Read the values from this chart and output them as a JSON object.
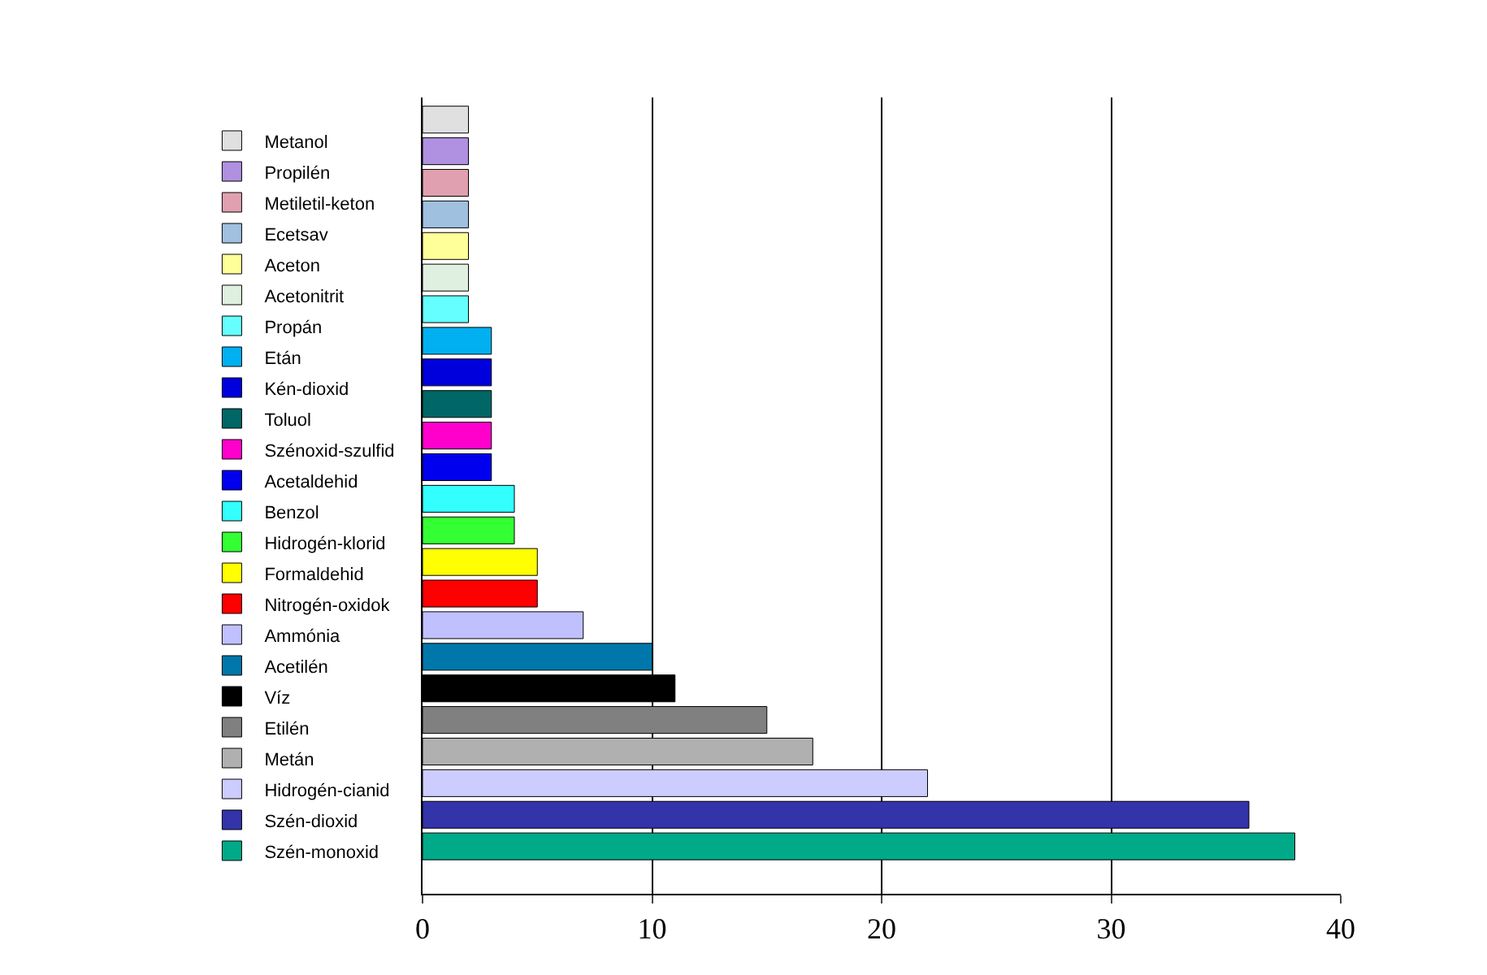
{
  "chart_data": {
    "type": "bar",
    "orientation": "horizontal",
    "categories": [
      null,
      null,
      null,
      null,
      null,
      null,
      null,
      null,
      null,
      null,
      null,
      null,
      null,
      null,
      null,
      null,
      null,
      null,
      null,
      null,
      null,
      null,
      null,
      null,
      null
    ],
    "xlim": [
      0,
      40
    ],
    "xticks": [
      0,
      10,
      20,
      30,
      40
    ],
    "grid": "x",
    "legend": "left",
    "tick_labels": "x",
    "series": [
      {
        "name": "Metanol",
        "color": "#e0e0e0",
        "values": [
          2,
          null,
          null,
          null,
          null,
          null,
          null,
          null,
          null,
          null,
          null,
          null,
          null,
          null,
          null,
          null,
          null,
          null,
          null,
          null,
          null,
          null,
          null,
          null,
          null
        ]
      },
      {
        "name": "Propilén",
        "color": "#b090e0",
        "values": [
          null,
          2,
          null,
          null,
          null,
          null,
          null,
          null,
          null,
          null,
          null,
          null,
          null,
          null,
          null,
          null,
          null,
          null,
          null,
          null,
          null,
          null,
          null,
          null,
          null
        ]
      },
      {
        "name": "Metiletil-keton",
        "color": "#e0a0b0",
        "values": [
          null,
          null,
          2,
          null,
          null,
          null,
          null,
          null,
          null,
          null,
          null,
          null,
          null,
          null,
          null,
          null,
          null,
          null,
          null,
          null,
          null,
          null,
          null,
          null,
          null
        ]
      },
      {
        "name": "Ecetsav",
        "color": "#a0c0e0",
        "values": [
          null,
          null,
          null,
          2,
          null,
          null,
          null,
          null,
          null,
          null,
          null,
          null,
          null,
          null,
          null,
          null,
          null,
          null,
          null,
          null,
          null,
          null,
          null,
          null,
          null
        ]
      },
      {
        "name": "Aceton",
        "color": "#ffff99",
        "values": [
          null,
          null,
          null,
          null,
          2,
          null,
          null,
          null,
          null,
          null,
          null,
          null,
          null,
          null,
          null,
          null,
          null,
          null,
          null,
          null,
          null,
          null,
          null,
          null,
          null
        ]
      },
      {
        "name": "Acetonitrit",
        "color": "#e0f0e0",
        "values": [
          null,
          null,
          null,
          null,
          null,
          2,
          null,
          null,
          null,
          null,
          null,
          null,
          null,
          null,
          null,
          null,
          null,
          null,
          null,
          null,
          null,
          null,
          null,
          null,
          null
        ]
      },
      {
        "name": "Propán",
        "color": "#66ffff",
        "values": [
          null,
          null,
          null,
          null,
          null,
          null,
          2,
          null,
          null,
          null,
          null,
          null,
          null,
          null,
          null,
          null,
          null,
          null,
          null,
          null,
          null,
          null,
          null,
          null,
          null
        ]
      },
      {
        "name": "Etán",
        "color": "#00b0f0",
        "values": [
          null,
          null,
          null,
          null,
          null,
          null,
          null,
          3,
          null,
          null,
          null,
          null,
          null,
          null,
          null,
          null,
          null,
          null,
          null,
          null,
          null,
          null,
          null,
          null,
          null
        ]
      },
      {
        "name": "Kén-dioxid",
        "color": "#0000dd",
        "values": [
          null,
          null,
          null,
          null,
          null,
          null,
          null,
          null,
          3,
          null,
          null,
          null,
          null,
          null,
          null,
          null,
          null,
          null,
          null,
          null,
          null,
          null,
          null,
          null,
          null
        ]
      },
      {
        "name": "Toluol",
        "color": "#006666",
        "values": [
          null,
          null,
          null,
          null,
          null,
          null,
          null,
          null,
          null,
          3,
          null,
          null,
          null,
          null,
          null,
          null,
          null,
          null,
          null,
          null,
          null,
          null,
          null,
          null,
          null
        ]
      },
      {
        "name": "Szénoxid-szulfid",
        "color": "#ff00cc",
        "values": [
          null,
          null,
          null,
          null,
          null,
          null,
          null,
          null,
          null,
          null,
          3,
          null,
          null,
          null,
          null,
          null,
          null,
          null,
          null,
          null,
          null,
          null,
          null,
          null,
          null
        ]
      },
      {
        "name": "Acetaldehid",
        "color": "#0000ee",
        "values": [
          null,
          null,
          null,
          null,
          null,
          null,
          null,
          null,
          null,
          null,
          null,
          3,
          null,
          null,
          null,
          null,
          null,
          null,
          null,
          null,
          null,
          null,
          null,
          null,
          null
        ]
      },
      {
        "name": "Benzol",
        "color": "#33ffff",
        "values": [
          null,
          null,
          null,
          null,
          null,
          null,
          null,
          null,
          null,
          null,
          null,
          null,
          4,
          null,
          null,
          null,
          null,
          null,
          null,
          null,
          null,
          null,
          null,
          null,
          null
        ]
      },
      {
        "name": "Hidrogén-klorid",
        "color": "#33ff33",
        "values": [
          null,
          null,
          null,
          null,
          null,
          null,
          null,
          null,
          null,
          null,
          null,
          null,
          null,
          4,
          null,
          null,
          null,
          null,
          null,
          null,
          null,
          null,
          null,
          null,
          null
        ]
      },
      {
        "name": "Formaldehid",
        "color": "#ffff00",
        "values": [
          null,
          null,
          null,
          null,
          null,
          null,
          null,
          null,
          null,
          null,
          null,
          null,
          null,
          null,
          5,
          null,
          null,
          null,
          null,
          null,
          null,
          null,
          null,
          null,
          null
        ]
      },
      {
        "name": "Nitrogén-oxidok",
        "color": "#ff0000",
        "values": [
          null,
          null,
          null,
          null,
          null,
          null,
          null,
          null,
          null,
          null,
          null,
          null,
          null,
          null,
          null,
          5,
          null,
          null,
          null,
          null,
          null,
          null,
          null,
          null,
          null
        ]
      },
      {
        "name": "Ammónia",
        "color": "#c0c0ff",
        "values": [
          null,
          null,
          null,
          null,
          null,
          null,
          null,
          null,
          null,
          null,
          null,
          null,
          null,
          null,
          null,
          null,
          7,
          null,
          null,
          null,
          null,
          null,
          null,
          null,
          null
        ]
      },
      {
        "name": "Acetilén",
        "color": "#0077aa",
        "values": [
          null,
          null,
          null,
          null,
          null,
          null,
          null,
          null,
          null,
          null,
          null,
          null,
          null,
          null,
          null,
          null,
          null,
          10,
          null,
          null,
          null,
          null,
          null,
          null,
          null
        ]
      },
      {
        "name": "Víz",
        "color": "#000000",
        "values": [
          null,
          null,
          null,
          null,
          null,
          null,
          null,
          null,
          null,
          null,
          null,
          null,
          null,
          null,
          null,
          null,
          null,
          null,
          11,
          null,
          null,
          null,
          null,
          null,
          null
        ]
      },
      {
        "name": "Etilén",
        "color": "#808080",
        "values": [
          null,
          null,
          null,
          null,
          null,
          null,
          null,
          null,
          null,
          null,
          null,
          null,
          null,
          null,
          null,
          null,
          null,
          null,
          null,
          15,
          null,
          null,
          null,
          null,
          null
        ]
      },
      {
        "name": "Metán",
        "color": "#b0b0b0",
        "values": [
          null,
          null,
          null,
          null,
          null,
          null,
          null,
          null,
          null,
          null,
          null,
          null,
          null,
          null,
          null,
          null,
          null,
          null,
          null,
          null,
          17,
          null,
          null,
          null,
          null
        ]
      },
      {
        "name": "Hidrogén-cianid",
        "color": "#ccccff",
        "values": [
          null,
          null,
          null,
          null,
          null,
          null,
          null,
          null,
          null,
          null,
          null,
          null,
          null,
          null,
          null,
          null,
          null,
          null,
          null,
          null,
          null,
          22,
          null,
          null,
          null
        ]
      },
      {
        "name": "Szén-dioxid",
        "color": "#3333aa",
        "values": [
          null,
          null,
          null,
          null,
          null,
          null,
          null,
          null,
          null,
          null,
          null,
          null,
          null,
          null,
          null,
          null,
          null,
          null,
          null,
          null,
          null,
          null,
          36,
          null,
          null
        ]
      },
      {
        "name": "Szén-monoxid",
        "color": "#00aa88",
        "values": [
          null,
          null,
          null,
          null,
          null,
          null,
          null,
          null,
          null,
          null,
          null,
          null,
          null,
          null,
          null,
          null,
          null,
          null,
          null,
          null,
          null,
          null,
          null,
          38,
          null
        ]
      }
    ]
  }
}
